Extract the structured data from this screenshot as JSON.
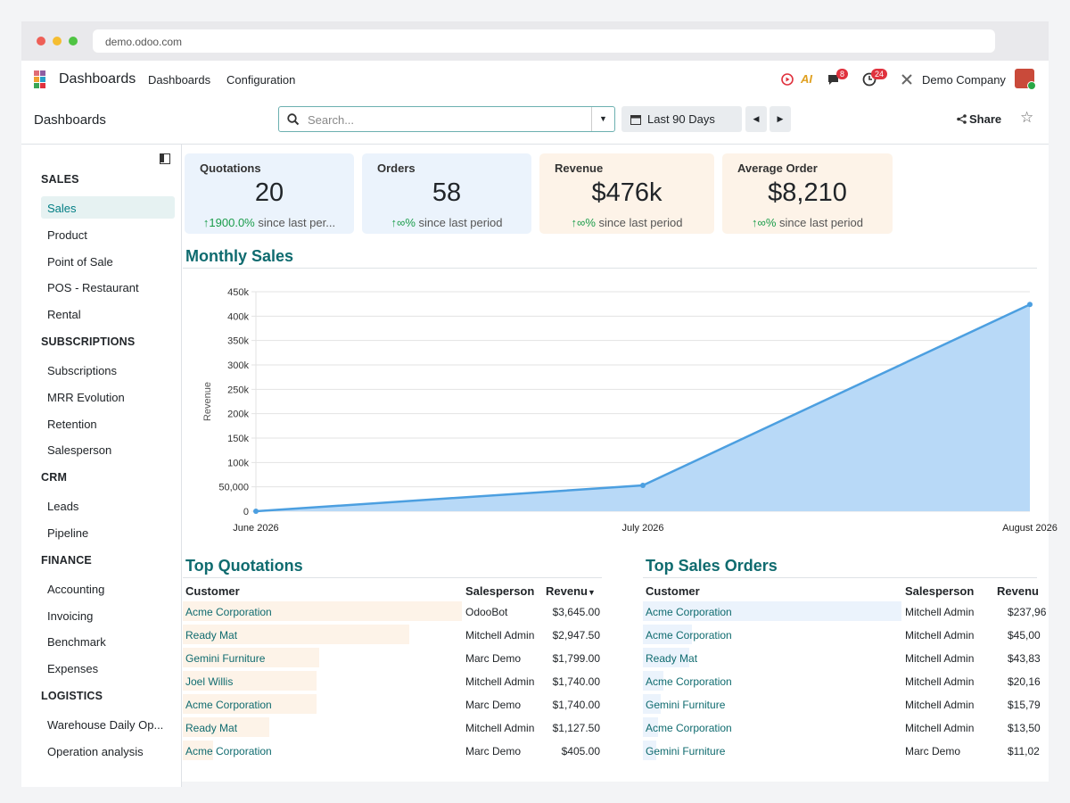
{
  "browser": {
    "url": "demo.odoo.com"
  },
  "topnav": {
    "brand": "Dashboards",
    "menus": [
      "Dashboards",
      "Configuration"
    ],
    "ai_label": "AI",
    "messages_count": "8",
    "activities_count": "24",
    "company": "Demo Company"
  },
  "control": {
    "title": "Dashboards",
    "search_placeholder": "Search...",
    "date_filter": "Last 90 Days",
    "share_label": "Share"
  },
  "sidebar": {
    "sections": [
      {
        "title": "SALES",
        "items": [
          "Sales",
          "Product",
          "Point of Sale",
          "POS - Restaurant",
          "Rental"
        ]
      },
      {
        "title": "SUBSCRIPTIONS",
        "items": [
          "Subscriptions",
          "MRR Evolution",
          "Retention",
          "Salesperson"
        ]
      },
      {
        "title": "CRM",
        "items": [
          "Leads",
          "Pipeline"
        ]
      },
      {
        "title": "FINANCE",
        "items": [
          "Accounting",
          "Invoicing",
          "Benchmark",
          "Expenses"
        ]
      },
      {
        "title": "LOGISTICS",
        "items": [
          "Warehouse Daily Op...",
          "Operation analysis"
        ]
      }
    ],
    "active_item": "Sales"
  },
  "kpis": [
    {
      "title": "Quotations",
      "value": "20",
      "delta": "1900.0%",
      "suffix": "since last per..."
    },
    {
      "title": "Orders",
      "value": "58",
      "delta": "∞%",
      "suffix": "since last period"
    },
    {
      "title": "Revenue",
      "value": "$476k",
      "delta": "∞%",
      "suffix": "since last period"
    },
    {
      "title": "Average Order",
      "value": "$8,210",
      "delta": "∞%",
      "suffix": "since last period"
    }
  ],
  "monthly_sales": {
    "title": "Monthly Sales"
  },
  "chart_data": {
    "type": "area",
    "title": "",
    "xlabel": "",
    "ylabel": "Revenue",
    "categories": [
      "June 2026",
      "July 2026",
      "August 2026"
    ],
    "series": [
      {
        "values": [
          0,
          53000,
          424000
        ]
      }
    ],
    "ylim": [
      0,
      450000
    ],
    "yticks": [
      "0",
      "50,000",
      "100k",
      "150k",
      "200k",
      "250k",
      "300k",
      "350k",
      "400k",
      "450k"
    ],
    "grid": true,
    "color": "#4c9fe0",
    "fill": "#b8d9f7"
  },
  "top_quotations": {
    "title": "Top Quotations",
    "headers": [
      "Customer",
      "Salesperson",
      "Revenu"
    ],
    "rows": [
      {
        "customer": "Acme Corporation",
        "salesperson": "OdooBot",
        "revenue": "$3,645.00",
        "share": 1.0
      },
      {
        "customer": "Ready Mat",
        "salesperson": "Mitchell Admin",
        "revenue": "$2,947.50",
        "share": 0.81
      },
      {
        "customer": "Gemini Furniture",
        "salesperson": "Marc Demo",
        "revenue": "$1,799.00",
        "share": 0.49
      },
      {
        "customer": "Joel Willis",
        "salesperson": "Mitchell Admin",
        "revenue": "$1,740.00",
        "share": 0.48
      },
      {
        "customer": "Acme Corporation",
        "salesperson": "Marc Demo",
        "revenue": "$1,740.00",
        "share": 0.48
      },
      {
        "customer": "Ready Mat",
        "salesperson": "Mitchell Admin",
        "revenue": "$1,127.50",
        "share": 0.31
      },
      {
        "customer": "Acme Corporation",
        "salesperson": "Marc Demo",
        "revenue": "$405.00",
        "share": 0.11
      }
    ]
  },
  "top_sales_orders": {
    "title": "Top Sales Orders",
    "headers": [
      "Customer",
      "Salesperson",
      "Revenu"
    ],
    "rows": [
      {
        "customer": "Acme Corporation",
        "salesperson": "Mitchell Admin",
        "revenue": "$237,96",
        "share": 1.0
      },
      {
        "customer": "Acme Corporation",
        "salesperson": "Mitchell Admin",
        "revenue": "$45,00",
        "share": 0.19
      },
      {
        "customer": "Ready Mat",
        "salesperson": "Mitchell Admin",
        "revenue": "$43,83",
        "share": 0.18
      },
      {
        "customer": "Acme Corporation",
        "salesperson": "Mitchell Admin",
        "revenue": "$20,16",
        "share": 0.08
      },
      {
        "customer": "Gemini Furniture",
        "salesperson": "Mitchell Admin",
        "revenue": "$15,79",
        "share": 0.07
      },
      {
        "customer": "Acme Corporation",
        "salesperson": "Mitchell Admin",
        "revenue": "$13,50",
        "share": 0.06
      },
      {
        "customer": "Gemini Furniture",
        "salesperson": "Marc Demo",
        "revenue": "$11,02",
        "share": 0.05
      }
    ]
  }
}
